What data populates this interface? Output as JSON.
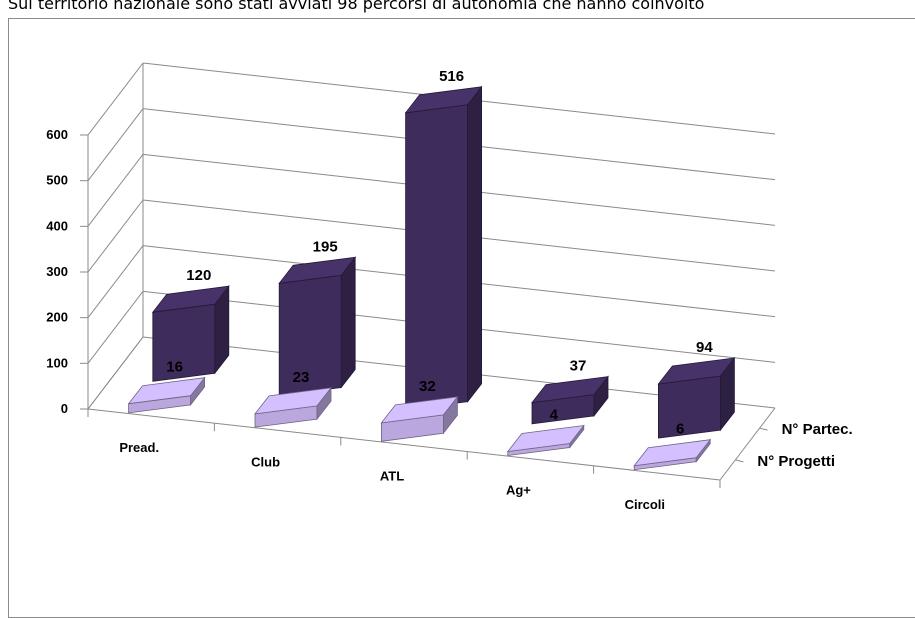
{
  "header_text": "Sul territorio nazionale sono stati avviati 98 percorsi di autonomia che hanno coinvolto",
  "chart_data": {
    "type": "bar",
    "categories": [
      "Pread.",
      "Club",
      "ATL",
      "Ag+",
      "Circoli"
    ],
    "series": [
      {
        "name": "N° Progetti",
        "values": [
          16,
          23,
          32,
          4,
          6
        ],
        "color": "#b9a7de"
      },
      {
        "name": "N° Partec.",
        "values": [
          120,
          195,
          516,
          37,
          94
        ],
        "color": "#3e2c5c"
      }
    ],
    "ylim": [
      0,
      600
    ],
    "yticks": [
      0,
      100,
      200,
      300,
      400,
      500,
      600
    ],
    "grid": true,
    "legend": "series labels on depth axis (right)"
  }
}
